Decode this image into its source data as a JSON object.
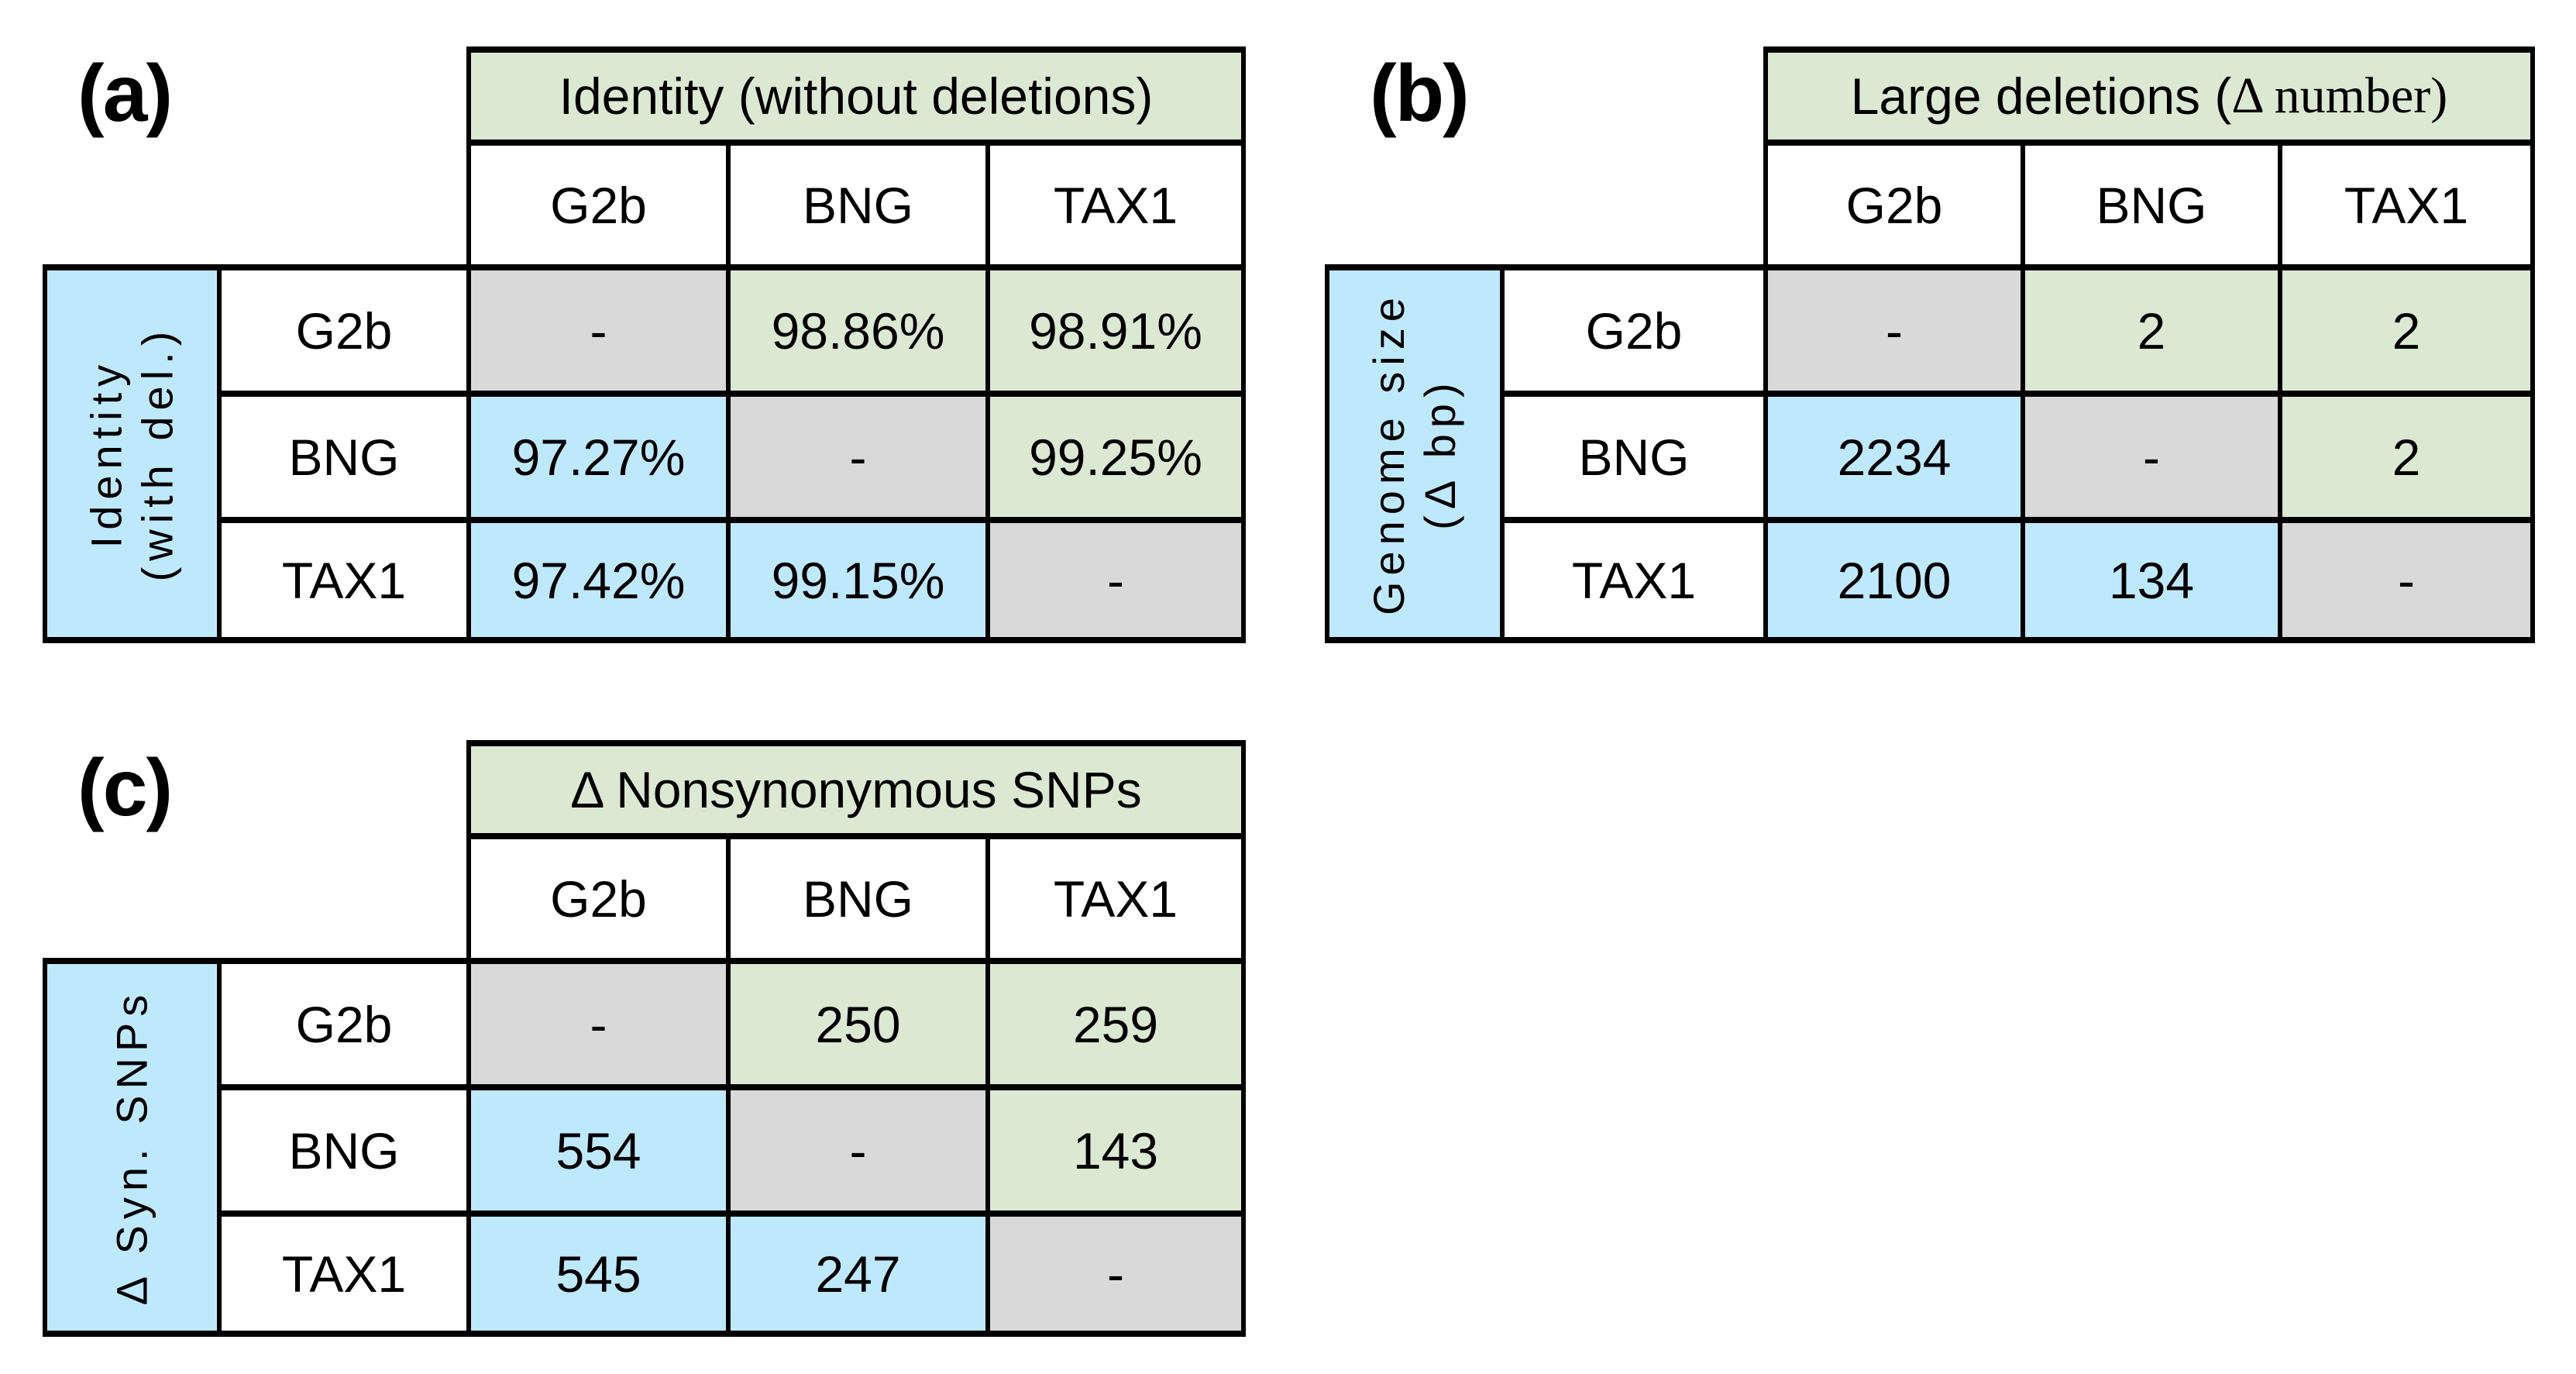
{
  "figure": {
    "colors": {
      "green": "#dbe9d3",
      "blue": "#bee8fb",
      "grey": "#d9d9d9",
      "border": "#000000",
      "background": "#ffffff"
    },
    "shading_scheme": {
      "diagonal": "grey",
      "upper_triangle": "green",
      "lower_triangle": "blue"
    },
    "panels": [
      {
        "label": "(a)",
        "column_group_title": "Identity (without deletions)",
        "column_group_title_serif": "",
        "row_group_title_lines": [
          "Identity",
          "(with del.)"
        ],
        "column_headers": [
          "G2b",
          "BNG",
          "TAX1"
        ],
        "rows": [
          {
            "header": "G2b",
            "cells": [
              "-",
              "98.86%",
              "98.91%"
            ]
          },
          {
            "header": "BNG",
            "cells": [
              "97.27%",
              "-",
              "99.25%"
            ]
          },
          {
            "header": "TAX1",
            "cells": [
              "97.42%",
              "99.15%",
              "-"
            ]
          }
        ]
      },
      {
        "label": "(b)",
        "column_group_title": "Large deletions (",
        "column_group_title_serif": "Δ number)",
        "row_group_title_lines": [
          "Genome size",
          "(Δ bp)"
        ],
        "column_headers": [
          "G2b",
          "BNG",
          "TAX1"
        ],
        "rows": [
          {
            "header": "G2b",
            "cells": [
              "-",
              "2",
              "2"
            ]
          },
          {
            "header": "BNG",
            "cells": [
              "2234",
              "-",
              "2"
            ]
          },
          {
            "header": "TAX1",
            "cells": [
              "2100",
              "134",
              "-"
            ]
          }
        ]
      },
      {
        "label": "(c)",
        "column_group_title": "Δ Nonsynonymous SNPs",
        "column_group_title_serif": "",
        "row_group_title_lines": [
          "Δ Syn. SNPs"
        ],
        "column_headers": [
          "G2b",
          "BNG",
          "TAX1"
        ],
        "rows": [
          {
            "header": "G2b",
            "cells": [
              "-",
              "250",
              "259"
            ]
          },
          {
            "header": "BNG",
            "cells": [
              "554",
              "-",
              "143"
            ]
          },
          {
            "header": "TAX1",
            "cells": [
              "545",
              "247",
              "-"
            ]
          }
        ]
      }
    ]
  },
  "chart_data": [
    {
      "type": "table",
      "panel": "(a)",
      "title_columns": "Identity (without deletions)",
      "title_rows": "Identity (with del.)",
      "labels": [
        "G2b",
        "BNG",
        "TAX1"
      ],
      "matrix": [
        [
          "-",
          "98.86%",
          "98.91%"
        ],
        [
          "97.27%",
          "-",
          "99.25%"
        ],
        [
          "97.42%",
          "99.15%",
          "-"
        ]
      ]
    },
    {
      "type": "table",
      "panel": "(b)",
      "title_columns": "Large deletions (Δ number)",
      "title_rows": "Genome size (Δ bp)",
      "labels": [
        "G2b",
        "BNG",
        "TAX1"
      ],
      "matrix": [
        [
          "-",
          "2",
          "2"
        ],
        [
          "2234",
          "-",
          "2"
        ],
        [
          "2100",
          "134",
          "-"
        ]
      ]
    },
    {
      "type": "table",
      "panel": "(c)",
      "title_columns": "Δ Nonsynonymous SNPs",
      "title_rows": "Δ Syn. SNPs",
      "labels": [
        "G2b",
        "BNG",
        "TAX1"
      ],
      "matrix": [
        [
          "-",
          "250",
          "259"
        ],
        [
          "554",
          "-",
          "143"
        ],
        [
          "545",
          "247",
          "-"
        ]
      ]
    }
  ]
}
